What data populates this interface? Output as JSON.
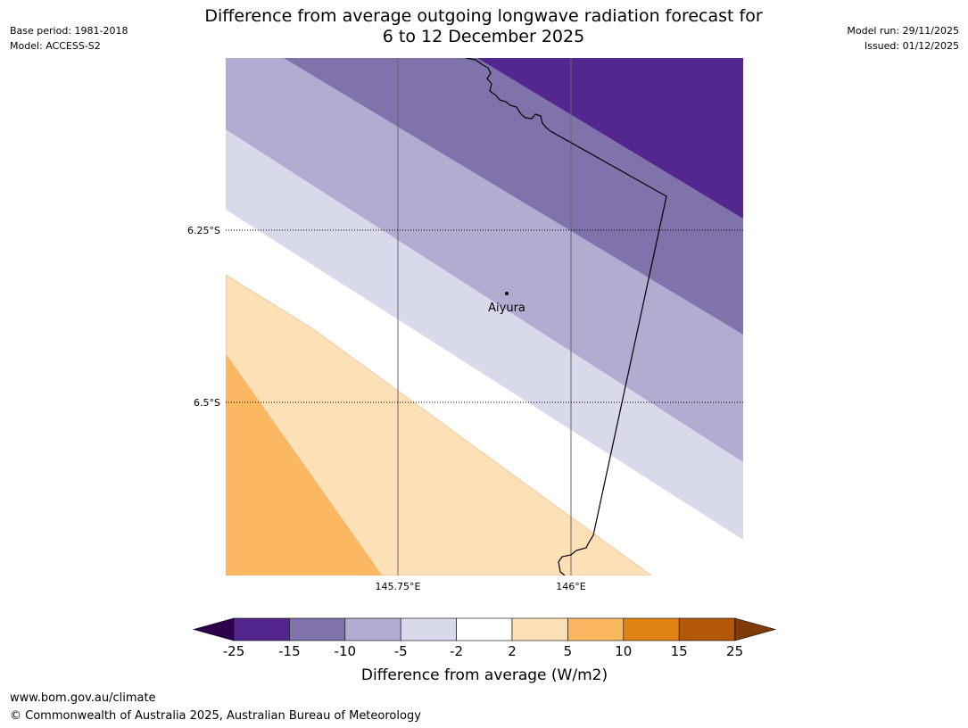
{
  "header": {
    "title_line1": "Difference from average outgoing longwave radiation forecast for",
    "title_line2": "6 to 12 December 2025",
    "base_period": "Base period: 1981-2018",
    "model": "Model: ACCESS-S2",
    "model_run": "Model run: 29/11/2025",
    "issued": "Issued: 01/12/2025"
  },
  "map": {
    "latitudes": [
      {
        "value": -6.25,
        "label": "6.25°S"
      },
      {
        "value": -6.5,
        "label": "6.5°S"
      }
    ],
    "longitudes": [
      {
        "value": 145.75,
        "label": "145.75°E"
      },
      {
        "value": 146.0,
        "label": "146°E"
      }
    ],
    "place": {
      "name": "Aiyura",
      "lat": -6.34,
      "lon": 145.9
    },
    "colors": {
      "band_m15_m25": "#54278f",
      "band_m10_m15": "#8073ac",
      "band_m5_m10": "#b2abd2",
      "band_m2_m5": "#d8daeb",
      "band_m2_2": "#ffffff",
      "band_2_5": "#fde0b6",
      "band_5_10": "#fbb862"
    }
  },
  "colorbar": {
    "label": "Difference from average (W/m2)",
    "ticks": [
      "-25",
      "-15",
      "-10",
      "-5",
      "-2",
      "2",
      "5",
      "10",
      "15",
      "25"
    ],
    "colors": [
      "#54278f",
      "#8073ac",
      "#b2abd2",
      "#d8daeb",
      "#ffffff",
      "#fde0b6",
      "#fbb862",
      "#e08214",
      "#b35806"
    ],
    "under_color": "#2d004b",
    "over_color": "#7f3b08"
  },
  "footer": {
    "url": "www.bom.gov.au/climate",
    "copyright": "© Commonwealth of Australia 2025, Australian Bureau of Meteorology"
  }
}
